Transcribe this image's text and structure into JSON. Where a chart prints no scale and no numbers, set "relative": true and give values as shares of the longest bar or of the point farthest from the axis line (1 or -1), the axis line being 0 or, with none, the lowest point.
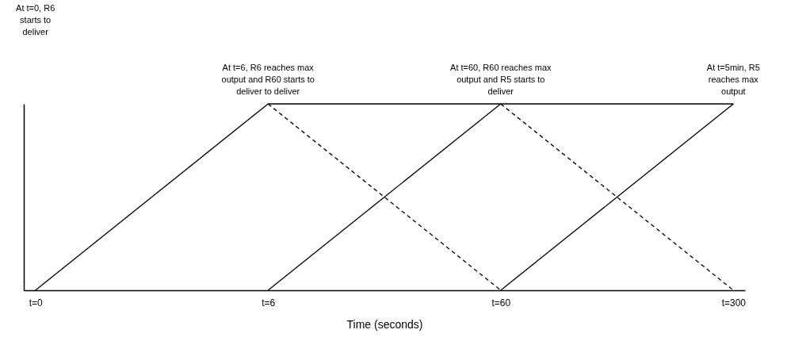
{
  "chart_data": {
    "type": "line",
    "relative": true,
    "xlabel": "Time (seconds)",
    "categories": [
      "t=0",
      "t=6",
      "t=60",
      "t=300"
    ],
    "grid": false,
    "marker": "none",
    "series": [
      {
        "color": "#000000",
        "line_style": "solid",
        "values": [
          0,
          1,
          1,
          1
        ]
      },
      {
        "color": "#000000",
        "line_style": "dashed",
        "values": [
          null,
          1,
          0,
          null
        ]
      },
      {
        "color": "#000000",
        "line_style": "solid",
        "values": [
          null,
          0,
          1,
          null
        ]
      },
      {
        "color": "#000000",
        "line_style": "dashed",
        "values": [
          null,
          null,
          1,
          0
        ]
      },
      {
        "color": "#000000",
        "line_style": "solid",
        "values": [
          null,
          null,
          0,
          1
        ]
      }
    ],
    "annotations": [
      "At t=0, R6 starts to deliver",
      "At t=6, R6 reaches max output and R60 starts to deliver to deliver",
      "At t=60, R60 reaches max output and R5 starts to deliver",
      "At t=5min, R5 reaches max output"
    ]
  }
}
